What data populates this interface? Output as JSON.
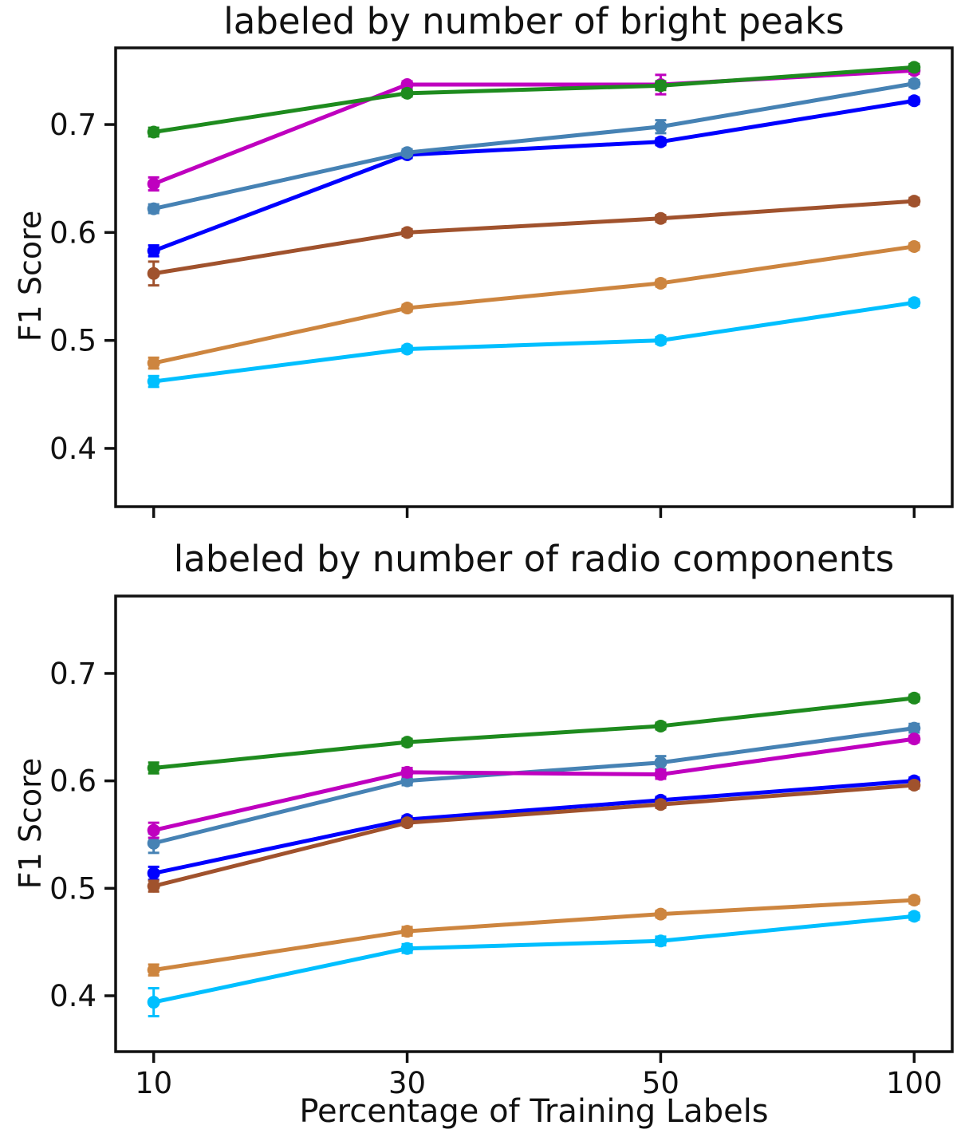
{
  "styles": {
    "background": "#ffffff",
    "axis_color": "#111111",
    "series_colors": {
      "cyan": "#00BFFF",
      "tan": "#CD853F",
      "blue": "#0000FF",
      "brown": "#A0522D",
      "steelblue": "#4682B4",
      "magenta": "#BF00BF",
      "green": "#1E8B1E"
    }
  },
  "chart_data": [
    {
      "type": "line",
      "title": "labeled by number of bright peaks",
      "ylabel": "F1 Score",
      "xlabel": "",
      "categories": [
        "10",
        "30",
        "50",
        "100"
      ],
      "show_x_tick_labels": false,
      "yticks": [
        0.4,
        0.5,
        0.6,
        0.7
      ],
      "ylim": [
        0.346,
        0.771
      ],
      "grid": false,
      "legend": "none",
      "series": [
        {
          "name": "cyan",
          "color": "#00BFFF",
          "values": [
            0.462,
            0.492,
            0.5,
            0.535
          ],
          "err": [
            0.005,
            0.003,
            0.003,
            0.003
          ]
        },
        {
          "name": "tan",
          "color": "#CD853F",
          "values": [
            0.479,
            0.53,
            0.553,
            0.587
          ],
          "err": [
            0.005,
            0.003,
            0.003,
            0.003
          ]
        },
        {
          "name": "blue",
          "color": "#0000FF",
          "values": [
            0.583,
            0.672,
            0.684,
            0.722
          ],
          "err": [
            0.005,
            0.003,
            0.003,
            0.003
          ]
        },
        {
          "name": "brown",
          "color": "#A0522D",
          "values": [
            0.562,
            0.6,
            0.613,
            0.629
          ],
          "err": [
            0.011,
            0.003,
            0.003,
            0.003
          ]
        },
        {
          "name": "steelblue",
          "color": "#4682B4",
          "values": [
            0.622,
            0.674,
            0.698,
            0.738
          ],
          "err": [
            0.004,
            0.003,
            0.006,
            0.003
          ]
        },
        {
          "name": "magenta",
          "color": "#BF00BF",
          "values": [
            0.645,
            0.737,
            0.737,
            0.75
          ],
          "err": [
            0.006,
            0.003,
            0.009,
            0.003
          ]
        },
        {
          "name": "green",
          "color": "#1E8B1E",
          "values": [
            0.693,
            0.729,
            0.736,
            0.753
          ],
          "err": [
            0.004,
            0.003,
            0.004,
            0.003
          ]
        }
      ]
    },
    {
      "type": "line",
      "title": "labeled by number of radio components",
      "ylabel": "F1 Score",
      "xlabel": "Percentage of Training Labels",
      "categories": [
        "10",
        "30",
        "50",
        "100"
      ],
      "show_x_tick_labels": true,
      "yticks": [
        0.4,
        0.5,
        0.6,
        0.7
      ],
      "ylim": [
        0.348,
        0.772
      ],
      "grid": false,
      "legend": "none",
      "series": [
        {
          "name": "cyan",
          "color": "#00BFFF",
          "values": [
            0.394,
            0.444,
            0.451,
            0.474
          ],
          "err": [
            0.013,
            0.004,
            0.004,
            0.003
          ]
        },
        {
          "name": "tan",
          "color": "#CD853F",
          "values": [
            0.424,
            0.46,
            0.476,
            0.489
          ],
          "err": [
            0.005,
            0.004,
            0.003,
            0.003
          ]
        },
        {
          "name": "blue",
          "color": "#0000FF",
          "values": [
            0.514,
            0.564,
            0.582,
            0.6
          ],
          "err": [
            0.006,
            0.003,
            0.003,
            0.003
          ]
        },
        {
          "name": "brown",
          "color": "#A0522D",
          "values": [
            0.502,
            0.561,
            0.578,
            0.596
          ],
          "err": [
            0.005,
            0.003,
            0.003,
            0.003
          ]
        },
        {
          "name": "steelblue",
          "color": "#4682B4",
          "values": [
            0.542,
            0.6,
            0.617,
            0.649
          ],
          "err": [
            0.009,
            0.004,
            0.006,
            0.004
          ]
        },
        {
          "name": "magenta",
          "color": "#BF00BF",
          "values": [
            0.554,
            0.608,
            0.606,
            0.639
          ],
          "err": [
            0.007,
            0.004,
            0.004,
            0.003
          ]
        },
        {
          "name": "green",
          "color": "#1E8B1E",
          "values": [
            0.612,
            0.636,
            0.651,
            0.677
          ],
          "err": [
            0.005,
            0.003,
            0.003,
            0.003
          ]
        }
      ]
    }
  ]
}
